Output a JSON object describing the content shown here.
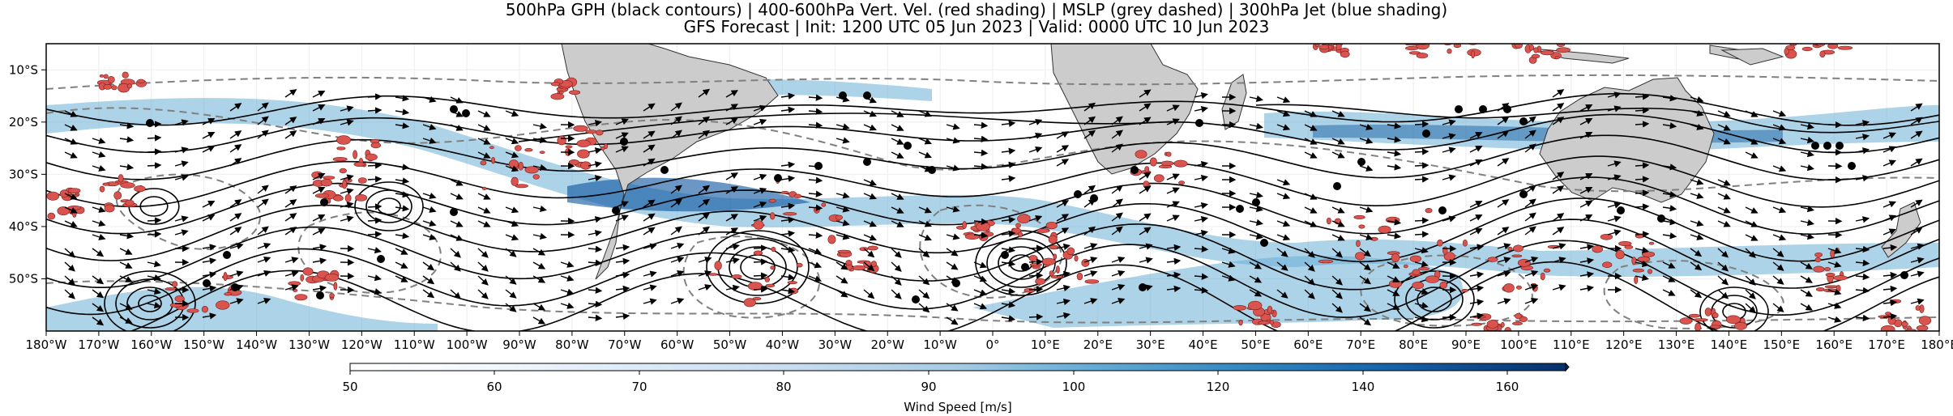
{
  "title": {
    "line1": "500hPa GPH (black contours) | 400-600hPa Vert. Vel. (red shading) | MSLP (grey dashed) | 300hPa Jet (blue shading)",
    "line2": "GFS Forecast | Init: 1200 UTC 05 Jun 2023 | Valid: 0000 UTC 10 Jun 2023"
  },
  "map": {
    "lon_range": [
      -180,
      180
    ],
    "lat_range": [
      -60,
      -5
    ],
    "lon_ticks": [
      "180°W",
      "170°W",
      "160°W",
      "150°W",
      "140°W",
      "130°W",
      "120°W",
      "110°W",
      "100°W",
      "90°W",
      "80°W",
      "70°W",
      "60°W",
      "50°W",
      "40°W",
      "30°W",
      "20°W",
      "10°W",
      "0°",
      "10°E",
      "20°E",
      "30°E",
      "40°E",
      "50°E",
      "60°E",
      "70°E",
      "80°E",
      "90°E",
      "100°E",
      "110°E",
      "120°E",
      "130°E",
      "140°E",
      "150°E",
      "160°E",
      "170°E",
      "180°E"
    ],
    "lat_ticks": [
      "10°S",
      "20°S",
      "30°S",
      "40°S",
      "50°S"
    ],
    "land_color": "#cccccc",
    "vv_color": "#d9534f",
    "gph_color": "#000000",
    "mslp_color": "#808080"
  },
  "colorbar": {
    "label": "Wind Speed [m/s]",
    "ticks": [
      "50",
      "60",
      "70",
      "80",
      "90",
      "100",
      "120",
      "140",
      "160"
    ],
    "colors": [
      "#ffffff",
      "#e6f0fa",
      "#cfe1f2",
      "#b5d2ea",
      "#93c3df",
      "#6aaed6",
      "#4191c6",
      "#2170b4",
      "#08519c",
      "#08306b"
    ]
  }
}
